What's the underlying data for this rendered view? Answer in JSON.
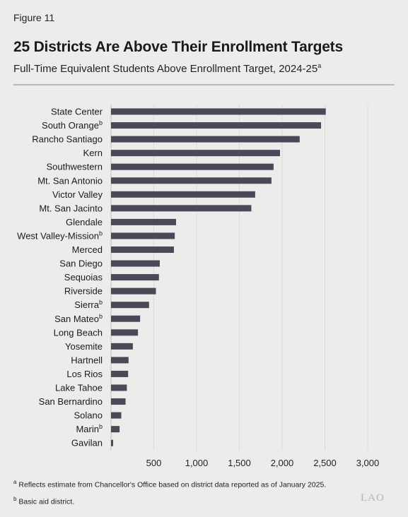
{
  "figure_label": "Figure 11",
  "title": "25 Districts Are Above Their Enrollment Targets",
  "subtitle": "Full-Time Equivalent Students Above Enrollment Target, 2024-25",
  "subtitle_note_marker": "a",
  "chart_data": {
    "type": "bar",
    "orientation": "horizontal",
    "categories": [
      "State Center",
      "South Orange",
      "Rancho Santiago",
      "Kern",
      "Southwestern",
      "Mt. San Antonio",
      "Victor Valley",
      "Mt. San Jacinto",
      "Glendale",
      "West Valley-Mission",
      "Merced",
      "San Diego",
      "Sequoias",
      "Riverside",
      "Sierra",
      "San Mateo",
      "Long Beach",
      "Yosemite",
      "Hartnell",
      "Los Rios",
      "Lake Tahoe",
      "San Bernardino",
      "Solano",
      "Marin",
      "Gavilan"
    ],
    "category_markers": [
      "",
      "b",
      "",
      "",
      "",
      "",
      "",
      "",
      "",
      "b",
      "",
      "",
      "",
      "",
      "b",
      "b",
      "",
      "",
      "",
      "",
      "",
      "",
      "",
      "b",
      ""
    ],
    "values": [
      2510,
      2455,
      2205,
      1975,
      1900,
      1875,
      1685,
      1640,
      760,
      745,
      735,
      570,
      560,
      525,
      445,
      340,
      315,
      255,
      205,
      200,
      185,
      170,
      120,
      100,
      25
    ],
    "xlim": [
      0,
      3000
    ],
    "xticks": [
      500,
      1000,
      1500,
      2000,
      2500,
      3000
    ],
    "xtick_labels": [
      "500",
      "1,000",
      "1,500",
      "2,000",
      "2,500",
      "3,000"
    ],
    "grid": "vertical",
    "bar_color": "#4b4858",
    "grid_color": "#d8dad8"
  },
  "footnotes": [
    {
      "marker": "a",
      "text": "Reflects estimate from Chancellor's Office based on district data reported as of January 2025."
    },
    {
      "marker": "b",
      "text": "Basic aid district."
    }
  ],
  "logo_text": "LAO"
}
